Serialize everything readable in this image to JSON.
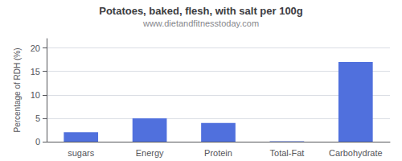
{
  "chart_data": {
    "type": "bar",
    "title": "Potatoes, baked, flesh, with salt per 100g",
    "subtitle": "www.dietandfitnesstoday.com",
    "categories": [
      "sugars",
      "Energy",
      "Protein",
      "Total-Fat",
      "Carbohydrate"
    ],
    "values": [
      2.0,
      5.0,
      4.0,
      0.1,
      17.0
    ],
    "ylabel": "Percentage of RDH (%)",
    "ylim": [
      0,
      22
    ],
    "yticks": [
      0,
      5,
      10,
      15,
      20
    ],
    "grid": true
  }
}
